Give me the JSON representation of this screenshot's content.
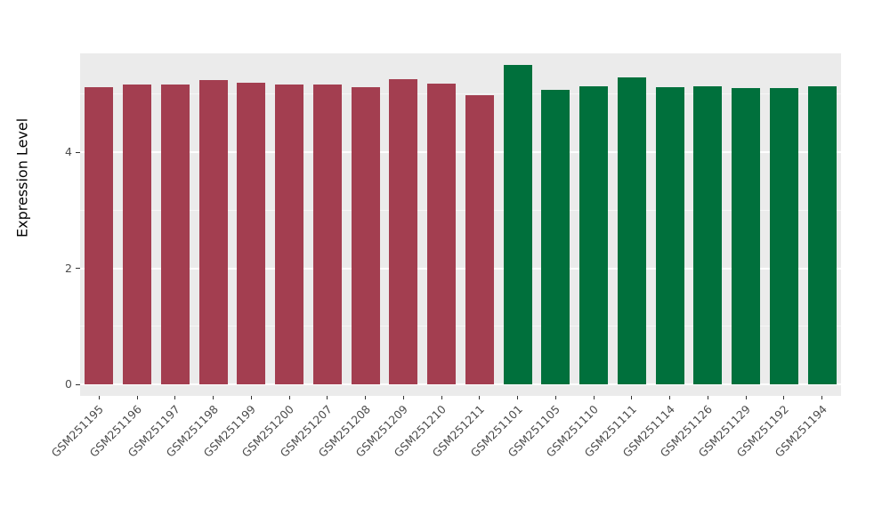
{
  "chart_data": {
    "type": "bar",
    "title": "",
    "xlabel": "",
    "ylabel": "Expression Level",
    "ylim": [
      0,
      5.7
    ],
    "yticks": [
      0,
      2,
      4
    ],
    "yticks_minor": [
      1,
      3,
      5
    ],
    "grid": true,
    "legend": "none",
    "panel_background": "#EBEBEB",
    "grid_color": "#FFFFFF",
    "axis_text_color": "#4D4D4D",
    "group_colors": {
      "group1": "#A33E50",
      "group2": "#00703C"
    },
    "categories": [
      "GSM251195",
      "GSM251196",
      "GSM251197",
      "GSM251198",
      "GSM251199",
      "GSM251200",
      "GSM251207",
      "GSM251208",
      "GSM251209",
      "GSM251210",
      "GSM251211",
      "GSM251101",
      "GSM251105",
      "GSM251110",
      "GSM251111",
      "GSM251114",
      "GSM251126",
      "GSM251129",
      "GSM251192",
      "GSM251194"
    ],
    "values": [
      5.12,
      5.17,
      5.17,
      5.24,
      5.19,
      5.17,
      5.16,
      5.12,
      5.26,
      5.18,
      4.98,
      5.5,
      5.08,
      5.14,
      5.28,
      5.12,
      5.13,
      5.1,
      5.1,
      5.14
    ],
    "colors": [
      "#A33E50",
      "#A33E50",
      "#A33E50",
      "#A33E50",
      "#A33E50",
      "#A33E50",
      "#A33E50",
      "#A33E50",
      "#A33E50",
      "#A33E50",
      "#A33E50",
      "#00703C",
      "#00703C",
      "#00703C",
      "#00703C",
      "#00703C",
      "#00703C",
      "#00703C",
      "#00703C",
      "#00703C"
    ]
  }
}
